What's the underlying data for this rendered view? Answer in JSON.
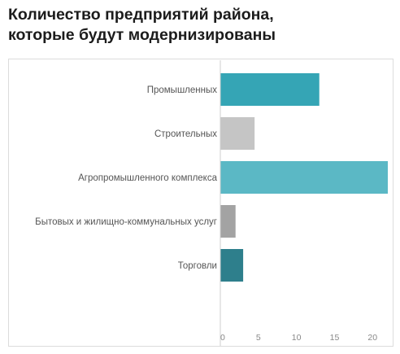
{
  "title_line1": "Количество предприятий района,",
  "title_line2": "которые будут модернизированы",
  "chart_data": {
    "type": "bar",
    "orientation": "horizontal",
    "title": "Количество предприятий района, которые будут модернизированы",
    "categories": [
      "Промышленных",
      "Строительных",
      "Агропромышленного комплекса",
      "Бытовых и жилищно-коммунальных услуг",
      "Торговли"
    ],
    "values": [
      13,
      4.5,
      22,
      2,
      3
    ],
    "colors": [
      "#35a5b5",
      "#c5c5c5",
      "#5bb8c5",
      "#a3a3a3",
      "#2e7f8c"
    ],
    "xlim": [
      0,
      22
    ],
    "xticks": [
      0,
      5,
      10,
      15,
      20
    ],
    "grid": false,
    "legend": "none"
  }
}
